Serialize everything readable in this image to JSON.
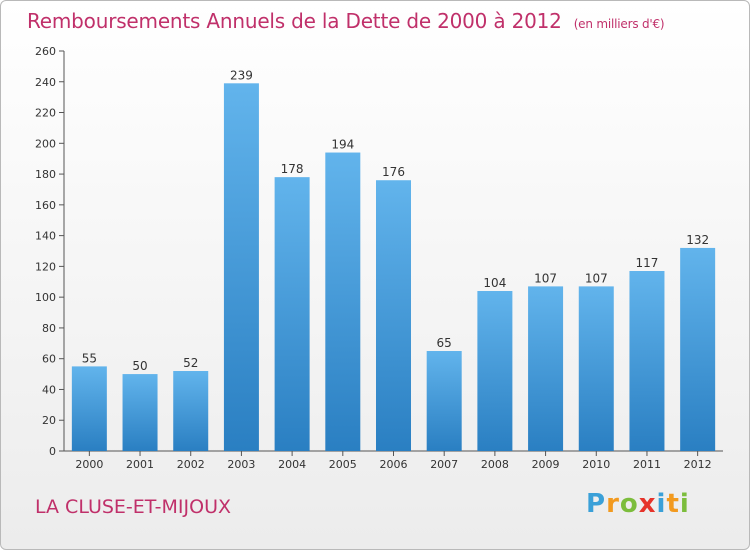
{
  "title": "Remboursements Annuels de la Dette de 2000 à 2012",
  "unit": "(en milliers d'€)",
  "commune": "LA CLUSE-ET-MIJOUX",
  "logo": {
    "letters": [
      "P",
      "r",
      "o",
      "x",
      "i",
      "t",
      "i"
    ],
    "colors": [
      "#3aa0d8",
      "#f29a1f",
      "#7cbd3c",
      "#e6332a",
      "#3aa0d8",
      "#f29a1f",
      "#7cbd3c"
    ]
  },
  "colors": {
    "bar_light": "#62b4ec",
    "bar_dark": "#2a7fc2",
    "title": "#c0306a"
  },
  "chart_data": {
    "type": "bar",
    "title": "Remboursements Annuels de la Dette de 2000 à 2012",
    "xlabel": "",
    "ylabel": "",
    "categories": [
      "2000",
      "2001",
      "2002",
      "2003",
      "2004",
      "2005",
      "2006",
      "2007",
      "2008",
      "2009",
      "2010",
      "2011",
      "2012"
    ],
    "values": [
      55,
      50,
      52,
      239,
      178,
      194,
      176,
      65,
      104,
      107,
      107,
      117,
      132
    ],
    "ylim": [
      0,
      260
    ],
    "yticks": [
      0,
      20,
      40,
      60,
      80,
      100,
      120,
      140,
      160,
      180,
      200,
      220,
      240,
      260
    ],
    "grid": false,
    "legend": "none"
  }
}
